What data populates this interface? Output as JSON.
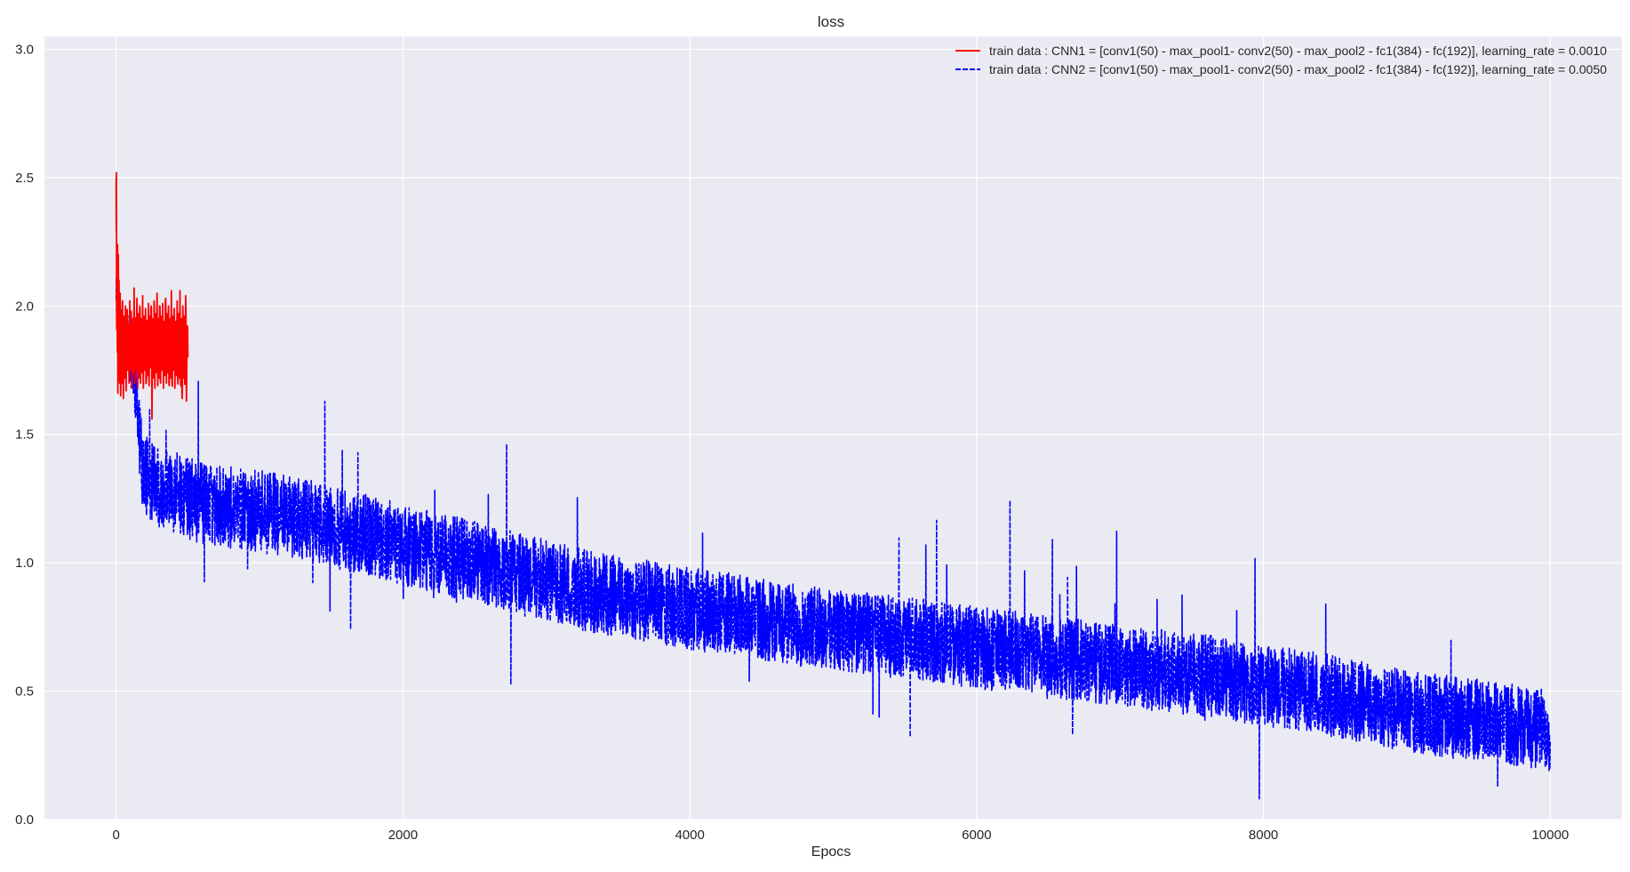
{
  "chart_data": {
    "type": "line",
    "title": "loss",
    "xlabel": "Epocs",
    "ylabel": "",
    "xlim": [
      -500,
      10500
    ],
    "ylim": [
      0.0,
      3.05
    ],
    "x_ticks": [
      0,
      2000,
      4000,
      6000,
      8000,
      10000
    ],
    "y_ticks": [
      0.0,
      0.5,
      1.0,
      1.5,
      2.0,
      2.5,
      3.0
    ],
    "x_tick_labels": [
      "0",
      "2000",
      "4000",
      "6000",
      "8000",
      "10000"
    ],
    "y_tick_labels": [
      "0.0",
      "0.5",
      "1.0",
      "1.5",
      "2.0",
      "2.5",
      "3.0"
    ],
    "grid": true,
    "legend_position": "top-right",
    "background_color": "#eaeaf2",
    "grid_color": "#ffffff",
    "series": [
      {
        "name": "train data : CNN1 = [conv1(50) - max_pool1- conv2(50) - max_pool2 - fc1(384) - fc(192)], learning_rate = 0.0010",
        "color": "#ff0000",
        "line_style": "solid",
        "x": [
          0,
          1,
          2,
          3,
          5,
          8,
          10,
          12,
          15,
          18,
          20,
          24,
          28,
          32,
          36,
          40,
          45,
          50,
          55,
          60,
          65,
          70,
          75,
          80,
          85,
          90,
          95,
          100,
          105,
          110,
          115,
          120,
          125,
          130,
          135,
          140,
          145,
          150,
          155,
          160,
          165,
          170,
          175,
          180,
          185,
          190,
          195,
          200,
          205,
          210,
          215,
          220,
          225,
          230,
          235,
          240,
          245,
          250,
          255,
          260,
          265,
          270,
          275,
          280,
          285,
          290,
          295,
          300,
          305,
          310,
          315,
          320,
          325,
          330,
          335,
          340,
          345,
          350,
          355,
          360,
          365,
          370,
          375,
          380,
          385,
          390,
          395,
          400,
          405,
          410,
          415,
          420,
          425,
          430,
          435,
          440,
          445,
          450,
          455,
          460,
          465,
          470,
          475,
          480,
          485,
          490,
          495,
          500
        ],
        "y": [
          2.5,
          2.3,
          2.52,
          1.95,
          2.05,
          1.82,
          2.24,
          1.66,
          2.2,
          1.75,
          2.1,
          1.7,
          2.05,
          1.65,
          1.98,
          1.7,
          2.02,
          1.64,
          1.96,
          1.72,
          2.0,
          1.67,
          1.97,
          1.75,
          1.93,
          1.7,
          2.02,
          1.75,
          1.98,
          1.68,
          1.95,
          1.74,
          2.07,
          1.7,
          1.95,
          1.75,
          2.03,
          1.68,
          1.97,
          1.72,
          2.0,
          1.7,
          1.95,
          1.74,
          2.04,
          1.68,
          1.96,
          1.75,
          1.99,
          1.7,
          1.93,
          1.73,
          2.01,
          1.69,
          1.96,
          1.76,
          2.0,
          1.56,
          1.95,
          1.72,
          2.02,
          1.68,
          1.97,
          1.74,
          2.05,
          1.69,
          1.95,
          1.72,
          2.0,
          1.7,
          1.96,
          1.75,
          2.01,
          1.68,
          1.94,
          1.73,
          2.03,
          1.7,
          1.97,
          1.74,
          2.0,
          1.69,
          1.95,
          1.72,
          2.06,
          1.7,
          1.96,
          1.75,
          1.99,
          1.68,
          1.94,
          1.73,
          2.02,
          1.7,
          1.97,
          1.72,
          2.06,
          1.69,
          1.95,
          1.64,
          2.0,
          1.72,
          1.96,
          1.7,
          2.04,
          1.63,
          1.9,
          1.8
        ],
        "noise_amplitude": 0.2
      },
      {
        "name": "train data : CNN2 = [conv1(50) - max_pool1- conv2(50) - max_pool2 - fc1(384) - fc(192)], learning_rate = 0.0050",
        "color": "#0000ff",
        "line_style": "dashed",
        "x": [
          0,
          10,
          20,
          40,
          60,
          80,
          100,
          120,
          140,
          160,
          170,
          180,
          200,
          250,
          300,
          400,
          500,
          700,
          1000,
          1300,
          1500,
          1800,
          2000,
          2300,
          2600,
          3000,
          3300,
          3600,
          4000,
          4300,
          4600,
          5000,
          5300,
          5600,
          6000,
          6300,
          6600,
          7000,
          7300,
          7600,
          8000,
          8300,
          8600,
          9000,
          9300,
          9600,
          10000
        ],
        "y": [
          2.0,
          1.95,
          1.9,
          1.88,
          1.85,
          1.85,
          1.8,
          1.75,
          1.65,
          1.5,
          1.42,
          1.38,
          1.35,
          1.32,
          1.3,
          1.28,
          1.25,
          1.22,
          1.2,
          1.17,
          1.14,
          1.1,
          1.07,
          1.03,
          0.99,
          0.93,
          0.89,
          0.86,
          0.82,
          0.8,
          0.77,
          0.74,
          0.72,
          0.7,
          0.67,
          0.65,
          0.63,
          0.6,
          0.58,
          0.56,
          0.52,
          0.5,
          0.47,
          0.42,
          0.4,
          0.38,
          0.35
        ],
        "noise_amplitude": 0.16
      }
    ]
  }
}
